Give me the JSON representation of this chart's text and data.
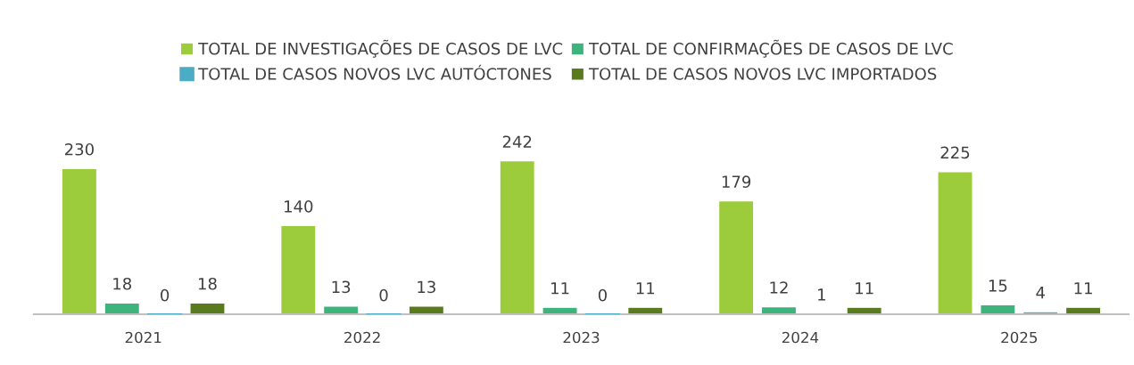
{
  "chart_data": {
    "type": "bar",
    "categories": [
      "2021",
      "2022",
      "2023",
      "2024",
      "2025"
    ],
    "series": [
      {
        "name": "TOTAL DE INVESTIGAÇÕES DE CASOS DE LVC",
        "color": "#9ccc3c",
        "values": [
          230,
          140,
          242,
          179,
          225
        ]
      },
      {
        "name": "TOTAL DE CONFIRMAÇÕES DE CASOS DE LVC",
        "color": "#3cb47c",
        "values": [
          18,
          13,
          11,
          12,
          15
        ]
      },
      {
        "name": "TOTAL DE CASOS NOVOS LVC AUTÓCTONES",
        "color": "#4bacc6",
        "values": [
          0,
          0,
          0,
          1,
          4
        ]
      },
      {
        "name": "TOTAL DE CASOS NOVOS LVC IMPORTADOS",
        "color": "#5a7a1e",
        "values": [
          18,
          13,
          11,
          11,
          11
        ]
      }
    ],
    "data_labels": true,
    "legend": "top",
    "grid": false
  }
}
